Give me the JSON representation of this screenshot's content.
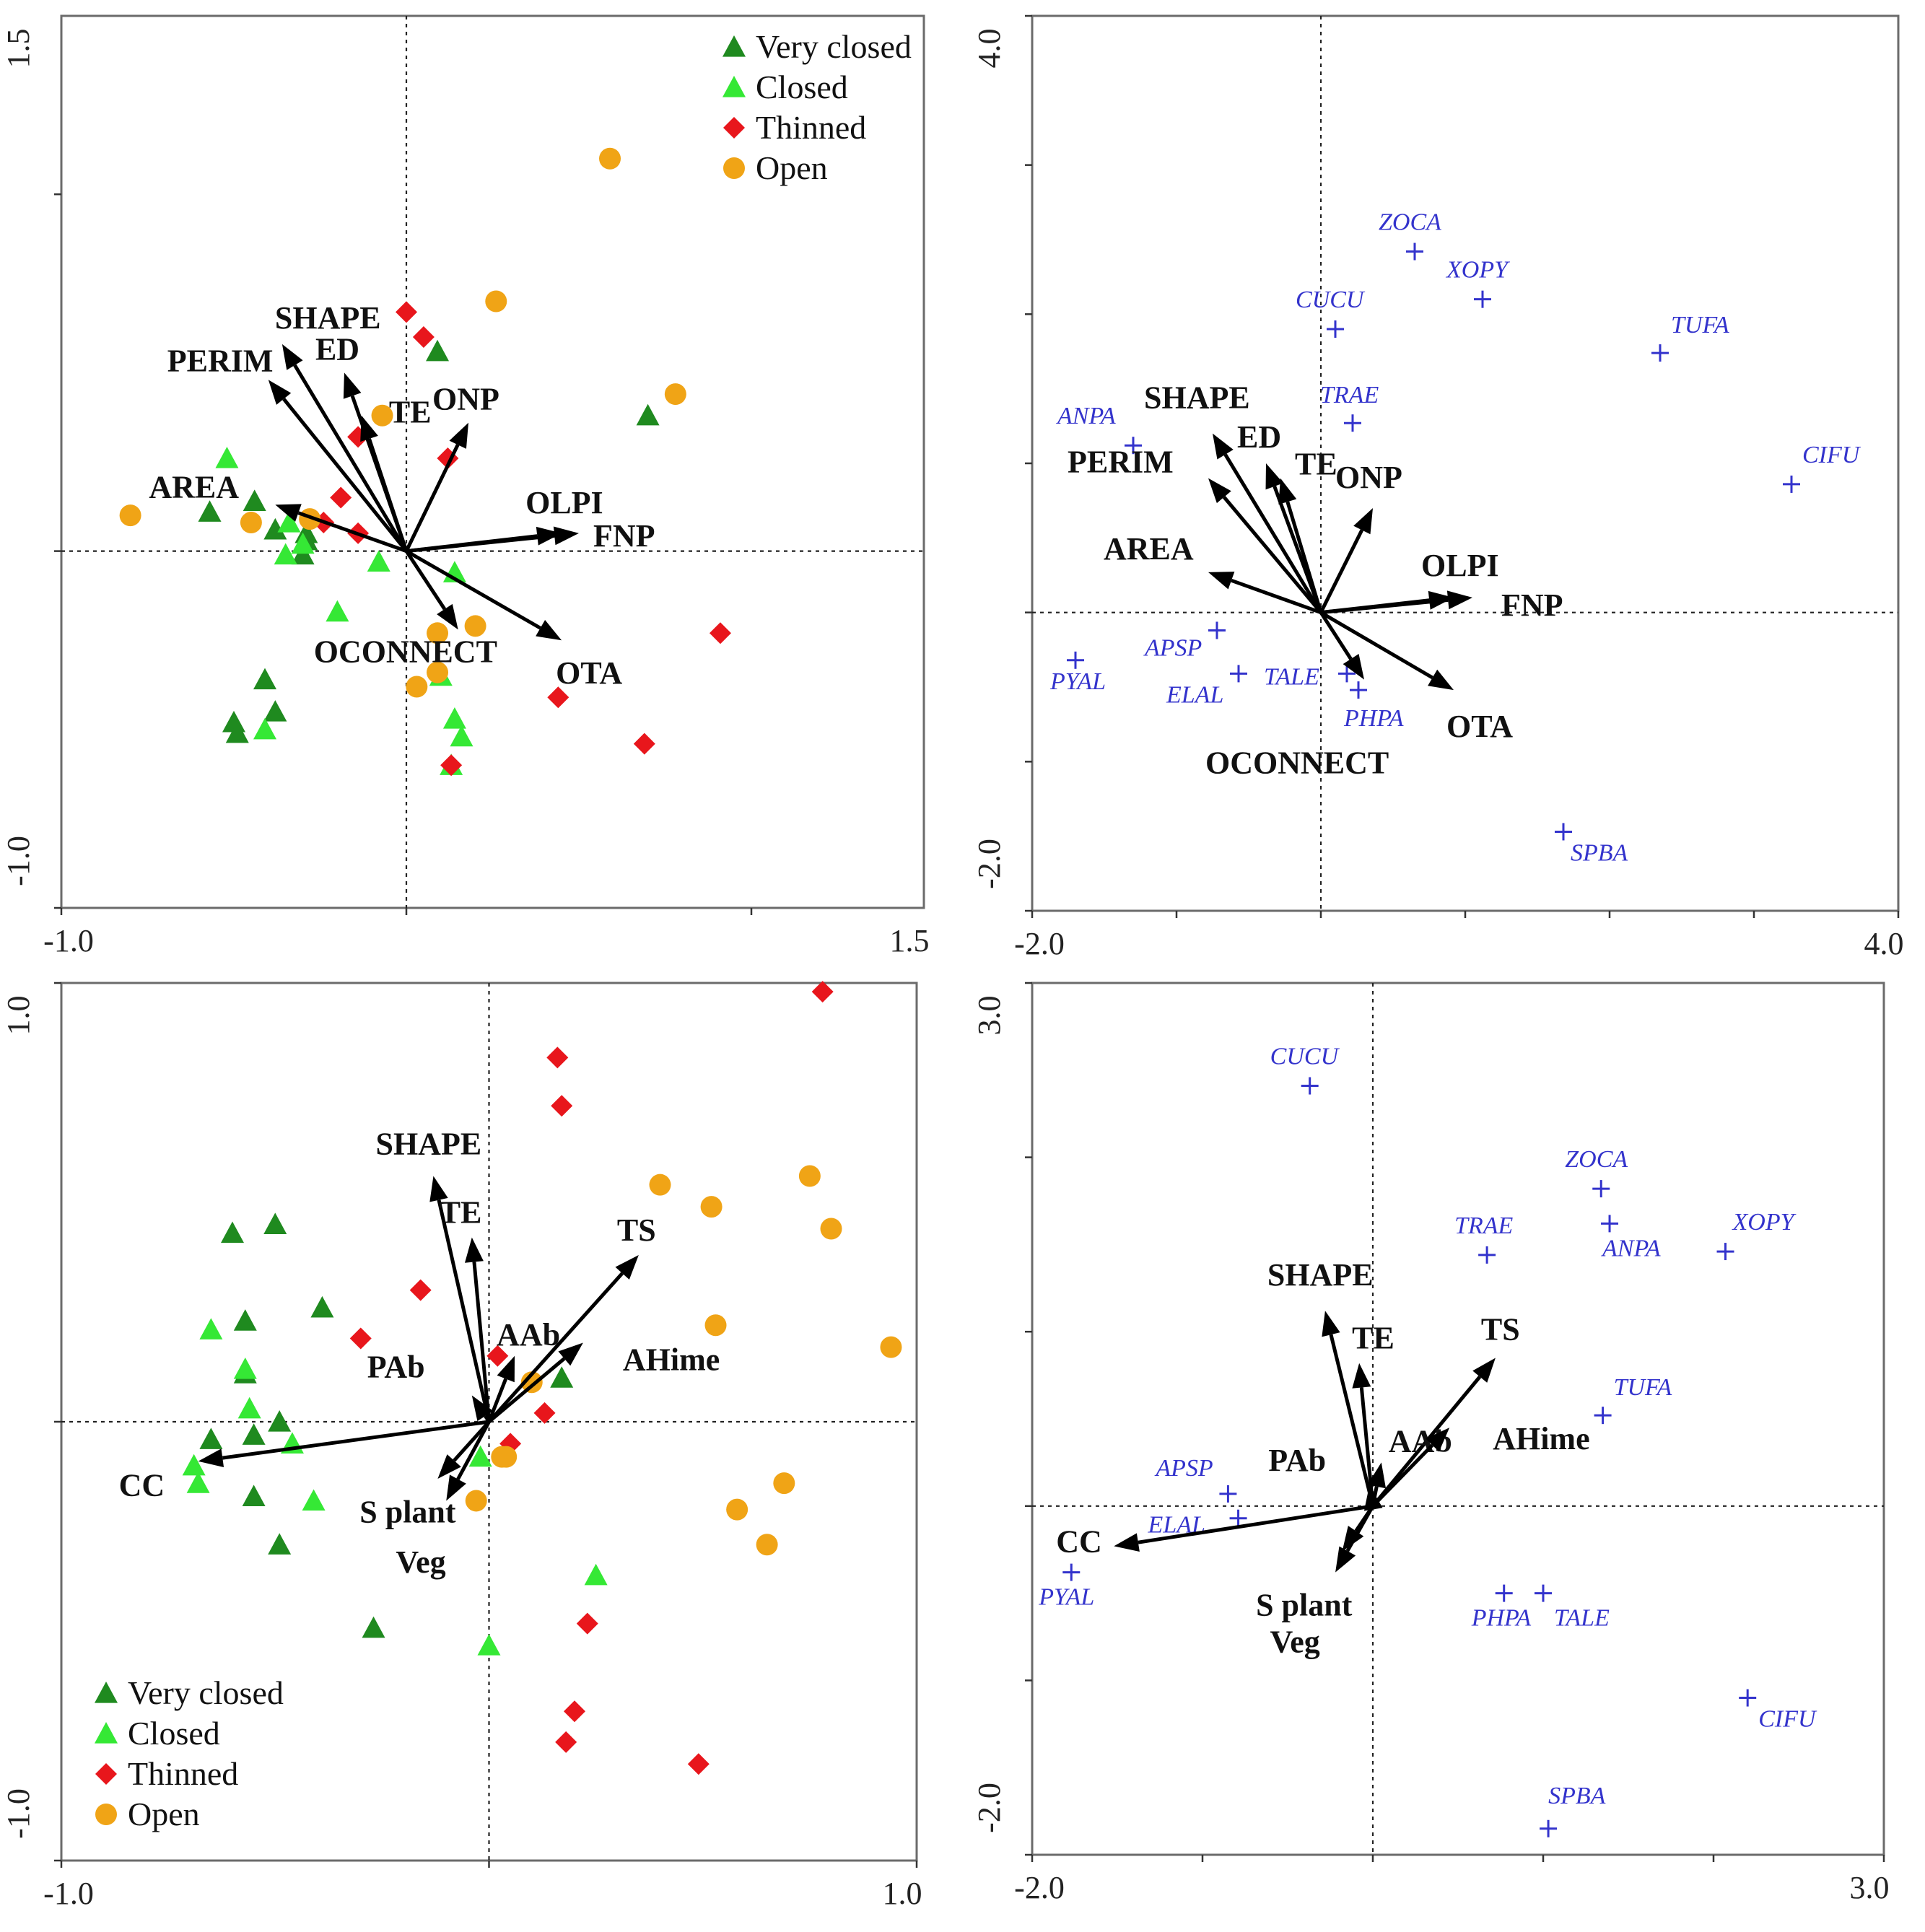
{
  "colors": {
    "Very closed": "#1f8a1f",
    "Closed": "#35e835",
    "Thinned": "#e8161c",
    "Open": "#f0a416",
    "species": "#3333cc"
  },
  "chart_data": [
    {
      "type": "scatter",
      "subtype": "ordination-biplot-sites",
      "title": "",
      "xlim": [
        -1.0,
        1.5
      ],
      "ylim": [
        -1.0,
        1.5
      ],
      "x_labels": [
        "-1.0",
        "1.5"
      ],
      "y_labels": [
        "-1.0",
        "1.5"
      ],
      "legend_position": "top-right",
      "legend": [
        "Very closed",
        "Closed",
        "Thinned",
        "Open"
      ],
      "arrows": [
        {
          "label": "SHAPE",
          "x": -0.36,
          "y": 0.58
        },
        {
          "label": "PERIM",
          "x": -0.4,
          "y": 0.48
        },
        {
          "label": "ED",
          "x": -0.18,
          "y": 0.5
        },
        {
          "label": "TE",
          "x": -0.13,
          "y": 0.38
        },
        {
          "label": "ONP",
          "x": 0.18,
          "y": 0.36
        },
        {
          "label": "AREA",
          "x": -0.38,
          "y": 0.13
        },
        {
          "label": "OLPI",
          "x": 0.45,
          "y": 0.05
        },
        {
          "label": "FNP",
          "x": 0.5,
          "y": 0.05
        },
        {
          "label": "OCONNECT",
          "x": 0.15,
          "y": -0.22
        },
        {
          "label": "OTA",
          "x": 0.45,
          "y": -0.25
        }
      ],
      "series": [
        {
          "name": "Very closed",
          "points": [
            [
              -0.57,
              0.11
            ],
            [
              -0.44,
              0.14
            ],
            [
              -0.38,
              0.06
            ],
            [
              -0.29,
              0.03
            ],
            [
              -0.3,
              -0.01
            ],
            [
              -0.29,
              0.05
            ],
            [
              -0.41,
              -0.36
            ],
            [
              -0.38,
              -0.45
            ],
            [
              -0.5,
              -0.48
            ],
            [
              -0.49,
              -0.51
            ],
            [
              0.09,
              0.56
            ],
            [
              0.7,
              0.38
            ]
          ]
        },
        {
          "name": "Closed",
          "points": [
            [
              -0.52,
              0.26
            ],
            [
              -0.34,
              0.08
            ],
            [
              -0.35,
              -0.01
            ],
            [
              -0.3,
              0.02
            ],
            [
              -0.2,
              -0.17
            ],
            [
              -0.08,
              -0.03
            ],
            [
              0.14,
              -0.06
            ],
            [
              0.1,
              -0.35
            ],
            [
              0.14,
              -0.47
            ],
            [
              0.16,
              -0.52
            ],
            [
              -0.41,
              -0.5
            ],
            [
              0.13,
              -0.6
            ]
          ]
        },
        {
          "name": "Thinned",
          "points": [
            [
              0.0,
              0.67
            ],
            [
              0.05,
              0.6
            ],
            [
              0.12,
              0.26
            ],
            [
              -0.14,
              0.32
            ],
            [
              -0.19,
              0.15
            ],
            [
              -0.14,
              0.05
            ],
            [
              -0.24,
              0.08
            ],
            [
              0.44,
              -0.41
            ],
            [
              0.69,
              -0.54
            ],
            [
              0.91,
              -0.23
            ],
            [
              0.13,
              -0.6
            ]
          ]
        },
        {
          "name": "Open",
          "points": [
            [
              0.59,
              1.1
            ],
            [
              0.26,
              0.7
            ],
            [
              0.78,
              0.44
            ],
            [
              -0.07,
              0.38
            ],
            [
              -0.8,
              0.1
            ],
            [
              -0.45,
              0.08
            ],
            [
              -0.28,
              0.09
            ],
            [
              0.09,
              -0.23
            ],
            [
              0.2,
              -0.21
            ],
            [
              0.03,
              -0.38
            ],
            [
              0.09,
              -0.34
            ]
          ]
        }
      ]
    },
    {
      "type": "scatter",
      "subtype": "ordination-biplot-species",
      "title": "",
      "xlim": [
        -2.0,
        4.0
      ],
      "ylim": [
        -2.0,
        4.0
      ],
      "x_labels": [
        "-2.0",
        "4.0"
      ],
      "y_labels": [
        "-2.0",
        "4.0"
      ],
      "arrows": [
        {
          "label": "SHAPE",
          "x": -0.75,
          "y": 1.2
        },
        {
          "label": "PERIM",
          "x": -0.78,
          "y": 0.9
        },
        {
          "label": "ED",
          "x": -0.38,
          "y": 1.0
        },
        {
          "label": "TE",
          "x": -0.28,
          "y": 0.9
        },
        {
          "label": "ONP",
          "x": 0.36,
          "y": 0.7
        },
        {
          "label": "AREA",
          "x": -0.78,
          "y": 0.27
        },
        {
          "label": "OLPI",
          "x": 0.92,
          "y": 0.1
        },
        {
          "label": "FNP",
          "x": 1.05,
          "y": 0.1
        },
        {
          "label": "OCONNECT",
          "x": 0.3,
          "y": -0.45
        },
        {
          "label": "OTA",
          "x": 0.92,
          "y": -0.52
        }
      ],
      "species": [
        {
          "label": "ZOCA",
          "x": 0.65,
          "y": 2.42
        },
        {
          "label": "XOPY",
          "x": 1.12,
          "y": 2.1
        },
        {
          "label": "CUCU",
          "x": 0.1,
          "y": 1.9
        },
        {
          "label": "TUFA",
          "x": 2.35,
          "y": 1.74
        },
        {
          "label": "TRAE",
          "x": 0.22,
          "y": 1.27
        },
        {
          "label": "ANPA",
          "x": -1.3,
          "y": 1.12
        },
        {
          "label": "CIFU",
          "x": 3.26,
          "y": 0.86
        },
        {
          "label": "APSP",
          "x": -0.72,
          "y": -0.12
        },
        {
          "label": "PYAL",
          "x": -1.7,
          "y": -0.32
        },
        {
          "label": "ELAL",
          "x": -0.57,
          "y": -0.41
        },
        {
          "label": "TALE",
          "x": 0.18,
          "y": -0.41
        },
        {
          "label": "PHPA",
          "x": 0.26,
          "y": -0.52
        },
        {
          "label": "SPBA",
          "x": 1.68,
          "y": -1.47
        }
      ]
    },
    {
      "type": "scatter",
      "subtype": "ordination-biplot-sites",
      "title": "",
      "xlim": [
        -1.0,
        1.0
      ],
      "ylim": [
        -1.0,
        1.0
      ],
      "x_labels": [
        "-1.0",
        "1.0"
      ],
      "y_labels": [
        "-1.0",
        "1.0"
      ],
      "legend_position": "bottom-left",
      "legend": [
        "Very closed",
        "Closed",
        "Thinned",
        "Open"
      ],
      "arrows": [
        {
          "label": "SHAPE",
          "x": -0.13,
          "y": 0.56
        },
        {
          "label": "TE",
          "x": -0.04,
          "y": 0.42
        },
        {
          "label": "TS",
          "x": 0.35,
          "y": 0.38
        },
        {
          "label": "AAb",
          "x": 0.06,
          "y": 0.15
        },
        {
          "label": "AHime",
          "x": 0.22,
          "y": 0.18
        },
        {
          "label": "PAb",
          "x": -0.04,
          "y": 0.06
        },
        {
          "label": "CC",
          "x": -0.68,
          "y": -0.09
        },
        {
          "label": "S plant",
          "x": -0.1,
          "y": -0.18
        },
        {
          "label": "Veg",
          "x": -0.12,
          "y": -0.13
        }
      ],
      "series": [
        {
          "name": "Very closed",
          "points": [
            [
              -0.6,
              0.43
            ],
            [
              -0.5,
              0.45
            ],
            [
              -0.57,
              0.23
            ],
            [
              -0.39,
              0.26
            ],
            [
              -0.57,
              0.11
            ],
            [
              -0.65,
              -0.04
            ],
            [
              -0.55,
              -0.03
            ],
            [
              -0.49,
              0.0
            ],
            [
              -0.55,
              -0.17
            ],
            [
              -0.49,
              -0.28
            ],
            [
              -0.27,
              -0.47
            ],
            [
              0.17,
              0.1
            ]
          ]
        },
        {
          "name": "Closed",
          "points": [
            [
              -0.65,
              0.21
            ],
            [
              -0.57,
              0.12
            ],
            [
              -0.56,
              0.03
            ],
            [
              -0.46,
              -0.05
            ],
            [
              -0.41,
              -0.18
            ],
            [
              -0.68,
              -0.14
            ],
            [
              -0.69,
              -0.1
            ],
            [
              0.25,
              -0.35
            ],
            [
              0.0,
              -0.51
            ],
            [
              -0.02,
              -0.08
            ]
          ]
        },
        {
          "name": "Thinned",
          "points": [
            [
              0.78,
              0.98
            ],
            [
              0.16,
              0.83
            ],
            [
              0.17,
              0.72
            ],
            [
              -0.16,
              0.3
            ],
            [
              -0.3,
              0.19
            ],
            [
              0.02,
              0.15
            ],
            [
              0.13,
              0.02
            ],
            [
              0.05,
              -0.05
            ],
            [
              0.23,
              -0.46
            ],
            [
              0.2,
              -0.66
            ],
            [
              0.18,
              -0.73
            ],
            [
              0.49,
              -0.78
            ]
          ]
        },
        {
          "name": "Open",
          "points": [
            [
              0.4,
              0.54
            ],
            [
              0.52,
              0.49
            ],
            [
              0.75,
              0.56
            ],
            [
              0.8,
              0.44
            ],
            [
              0.53,
              0.22
            ],
            [
              0.94,
              0.17
            ],
            [
              0.1,
              0.09
            ],
            [
              0.04,
              -0.08
            ],
            [
              0.03,
              -0.08
            ],
            [
              -0.03,
              -0.18
            ],
            [
              0.58,
              -0.2
            ],
            [
              0.69,
              -0.14
            ],
            [
              0.65,
              -0.28
            ]
          ]
        }
      ]
    },
    {
      "type": "scatter",
      "subtype": "ordination-biplot-species",
      "title": "",
      "xlim": [
        -2.0,
        3.0
      ],
      "ylim": [
        -2.0,
        3.0
      ],
      "x_labels": [
        "-2.0",
        "3.0"
      ],
      "y_labels": [
        "-2.0",
        "3.0"
      ],
      "arrows": [
        {
          "label": "SHAPE",
          "x": -0.28,
          "y": 1.12
        },
        {
          "label": "TE",
          "x": -0.08,
          "y": 0.82
        },
        {
          "label": "TS",
          "x": 0.72,
          "y": 0.85
        },
        {
          "label": "AAb",
          "x": 0.05,
          "y": 0.25
        },
        {
          "label": "AHime",
          "x": 0.45,
          "y": 0.45
        },
        {
          "label": "PAb",
          "x": -0.02,
          "y": 0.12
        },
        {
          "label": "CC",
          "x": -1.52,
          "y": -0.23
        },
        {
          "label": "S plant",
          "x": -0.22,
          "y": -0.38
        },
        {
          "label": "Veg",
          "x": -0.18,
          "y": -0.26
        }
      ],
      "species": [
        {
          "label": "CUCU",
          "x": -0.37,
          "y": 2.41
        },
        {
          "label": "ZOCA",
          "x": 1.34,
          "y": 1.82
        },
        {
          "label": "ANPA",
          "x": 1.39,
          "y": 1.62
        },
        {
          "label": "XOPY",
          "x": 2.07,
          "y": 1.46
        },
        {
          "label": "TRAE",
          "x": 0.67,
          "y": 1.44
        },
        {
          "label": "TUFA",
          "x": 1.35,
          "y": 0.52
        },
        {
          "label": "APSP",
          "x": -0.85,
          "y": 0.07
        },
        {
          "label": "ELAL",
          "x": -0.79,
          "y": -0.07
        },
        {
          "label": "PYAL",
          "x": -1.77,
          "y": -0.38
        },
        {
          "label": "PHPA",
          "x": 0.77,
          "y": -0.5
        },
        {
          "label": "TALE",
          "x": 1.0,
          "y": -0.5
        },
        {
          "label": "CIFU",
          "x": 2.2,
          "y": -1.1
        },
        {
          "label": "SPBA",
          "x": 1.03,
          "y": -1.85
        }
      ]
    }
  ]
}
